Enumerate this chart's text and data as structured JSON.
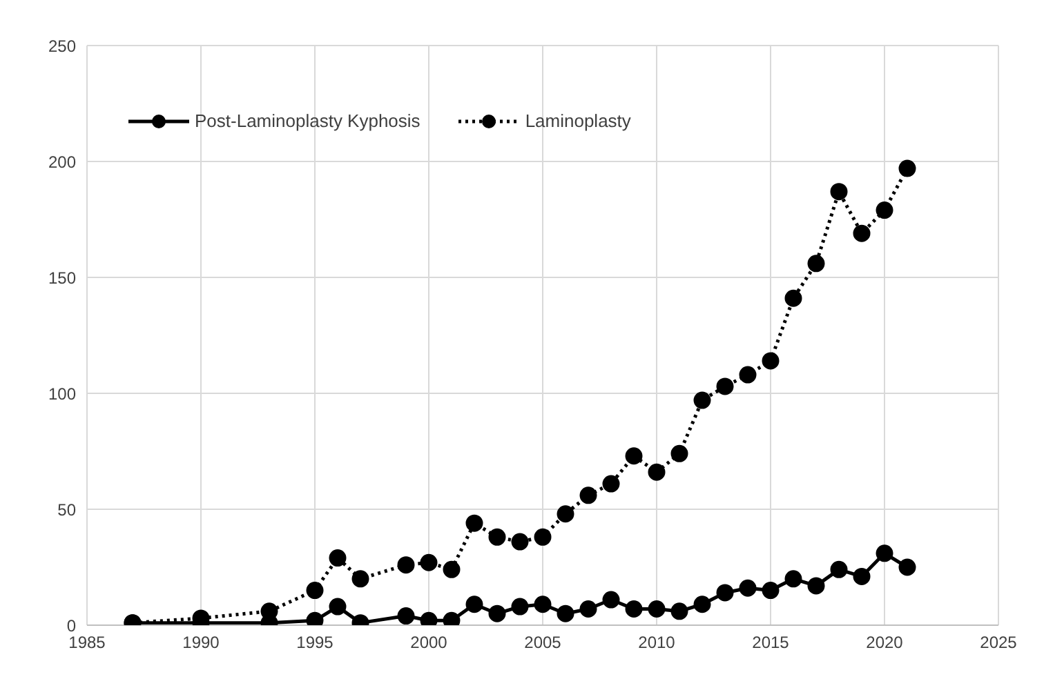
{
  "chart_data": {
    "type": "line",
    "x": [
      1987,
      1990,
      1993,
      1995,
      1996,
      1997,
      1999,
      2000,
      2001,
      2002,
      2003,
      2004,
      2005,
      2006,
      2007,
      2008,
      2009,
      2010,
      2011,
      2012,
      2013,
      2014,
      2015,
      2016,
      2017,
      2018,
      2019,
      2020,
      2021
    ],
    "series": [
      {
        "name": "Post-Laminoplasty Kyphosis",
        "color": "#000000",
        "line_style": "solid",
        "values": [
          1,
          1,
          1,
          2,
          8,
          1,
          4,
          2,
          2,
          9,
          5,
          8,
          9,
          5,
          7,
          11,
          7,
          7,
          6,
          9,
          14,
          16,
          15,
          20,
          17,
          24,
          21,
          31,
          25
        ]
      },
      {
        "name": "Laminoplasty",
        "color": "#000000",
        "line_style": "dotted",
        "values": [
          1,
          3,
          6,
          15,
          29,
          20,
          26,
          27,
          24,
          44,
          38,
          36,
          38,
          48,
          56,
          61,
          73,
          66,
          74,
          97,
          103,
          108,
          114,
          141,
          156,
          187,
          169,
          179,
          197
        ]
      }
    ],
    "xlim": [
      1985,
      2025
    ],
    "xticks": [
      1985,
      1990,
      1995,
      2000,
      2005,
      2010,
      2015,
      2020,
      2025
    ],
    "ylim": [
      0,
      250
    ],
    "yticks": [
      0,
      50,
      100,
      150,
      200,
      250
    ],
    "grid": true,
    "legend": "top left",
    "marker": "circle"
  }
}
